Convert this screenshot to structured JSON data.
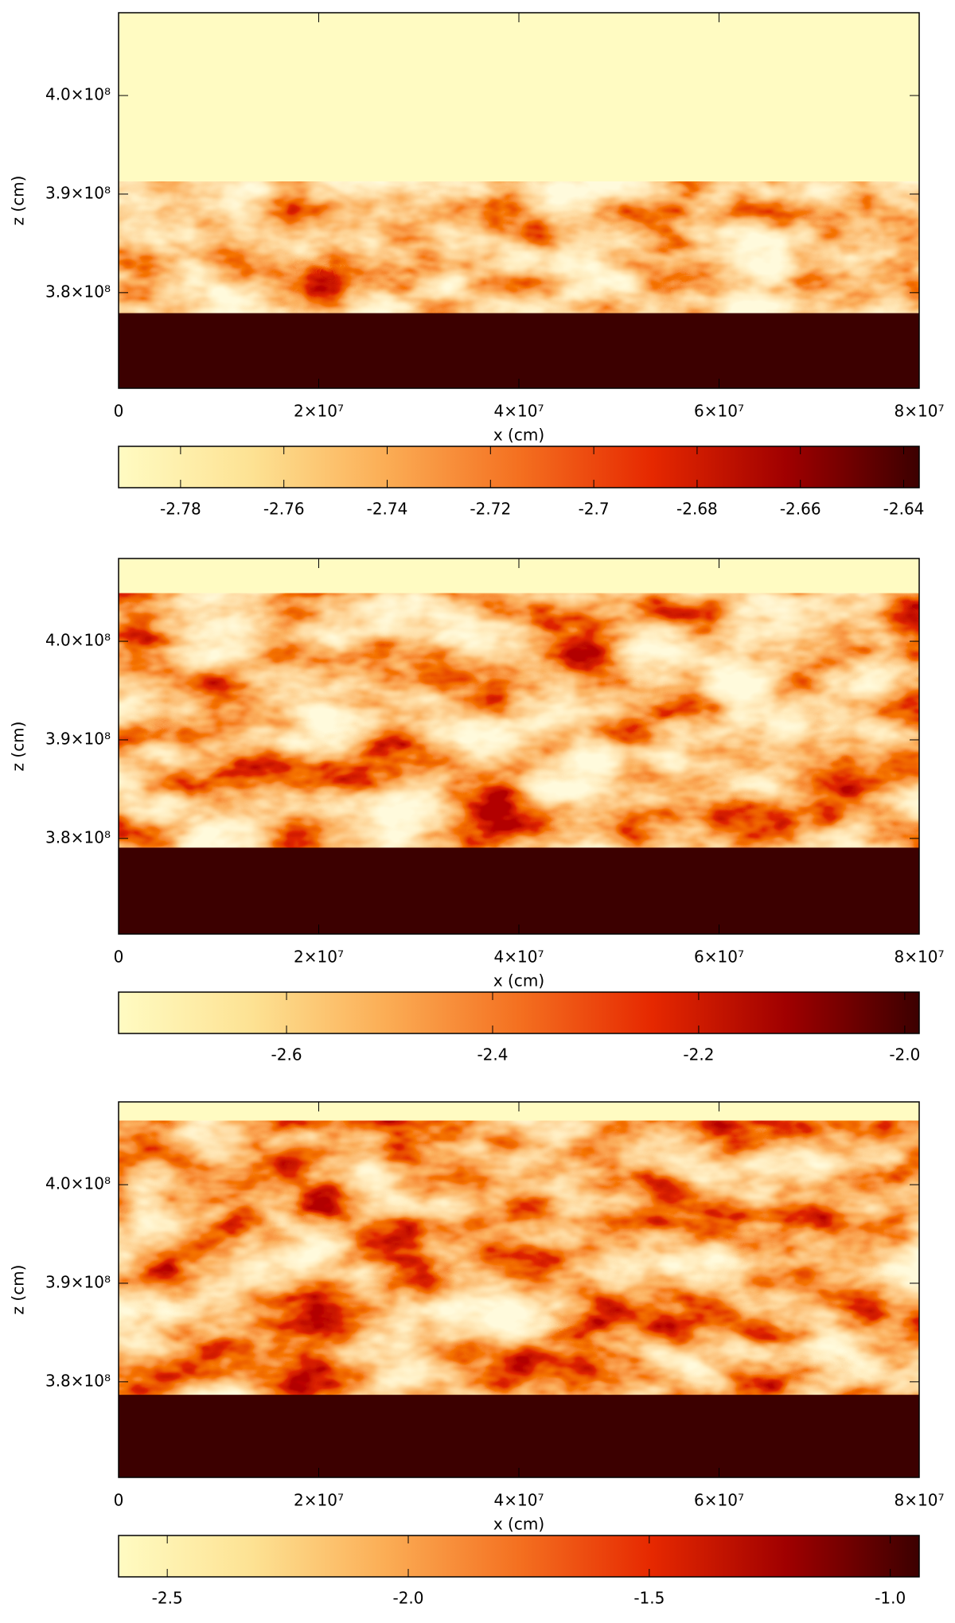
{
  "chart_data": [
    {
      "type": "heatmap",
      "xlabel": "x (cm)",
      "ylabel": "z (cm)",
      "xlim": [
        0,
        80000000
      ],
      "xticks": [
        0,
        {
          "value": 20000000,
          "label": "2×10⁷"
        },
        {
          "value": 40000000,
          "label": "4×10⁷"
        },
        {
          "value": 60000000,
          "label": "6×10⁷"
        },
        {
          "value": 80000000,
          "label": "8×10⁷"
        }
      ],
      "ylim": [
        370300000,
        408400000
      ],
      "yticks": [
        {
          "value": 380000000,
          "label": "3.8×10⁸"
        },
        {
          "value": 390000000,
          "label": "3.9×10⁸"
        },
        {
          "value": 400000000,
          "label": "4.0×10⁸"
        }
      ],
      "colormap": [
        "#fffbc2",
        "#fde293",
        "#fbad55",
        "#f47020",
        "#e62800",
        "#a00000",
        "#3c0000"
      ],
      "clim": [
        -2.792,
        -2.637
      ],
      "cticks": [
        -2.78,
        -2.76,
        -2.74,
        -2.72,
        -2.7,
        -2.68,
        -2.66,
        -2.64
      ]
    },
    {
      "type": "heatmap",
      "xlabel": "x (cm)",
      "ylabel": "z (cm)",
      "xlim": [
        0,
        80000000
      ],
      "xticks": [
        0,
        {
          "value": 20000000,
          "label": "2×10⁷"
        },
        {
          "value": 40000000,
          "label": "4×10⁷"
        },
        {
          "value": 60000000,
          "label": "6×10⁷"
        },
        {
          "value": 80000000,
          "label": "8×10⁷"
        }
      ],
      "ylim": [
        370300000,
        408400000
      ],
      "yticks": [
        {
          "value": 380000000,
          "label": "3.8×10⁸"
        },
        {
          "value": 390000000,
          "label": "3.9×10⁸"
        },
        {
          "value": 400000000,
          "label": "4.0×10⁸"
        }
      ],
      "colormap": [
        "#fffbc2",
        "#fde293",
        "#fbad55",
        "#f47020",
        "#e62800",
        "#a00000",
        "#3c0000"
      ],
      "clim": [
        -2.763,
        -1.986
      ],
      "cticks": [
        -2.6,
        -2.4,
        -2.2,
        {
          "value": -2,
          "label": "-2.0"
        }
      ]
    },
    {
      "type": "heatmap",
      "xlabel": "x (cm)",
      "ylabel": "z (cm)",
      "xlim": [
        0,
        80000000
      ],
      "xticks": [
        0,
        {
          "value": 20000000,
          "label": "2×10⁷"
        },
        {
          "value": 40000000,
          "label": "4×10⁷"
        },
        {
          "value": 60000000,
          "label": "6×10⁷"
        },
        {
          "value": 80000000,
          "label": "8×10⁷"
        }
      ],
      "ylim": [
        370300000,
        408400000
      ],
      "yticks": [
        {
          "value": 380000000,
          "label": "3.8×10⁸"
        },
        {
          "value": 390000000,
          "label": "3.9×10⁸"
        },
        {
          "value": 400000000,
          "label": "4.0×10⁸"
        }
      ],
      "colormap": [
        "#fffbc2",
        "#fde293",
        "#fbad55",
        "#f47020",
        "#e62800",
        "#a00000",
        "#3c0000"
      ],
      "clim": [
        -2.601,
        -0.94
      ],
      "cticks": [
        -2.5,
        {
          "value": -2,
          "label": "-2.0"
        },
        -1.5,
        {
          "value": -1,
          "label": "-1.0"
        }
      ]
    }
  ]
}
